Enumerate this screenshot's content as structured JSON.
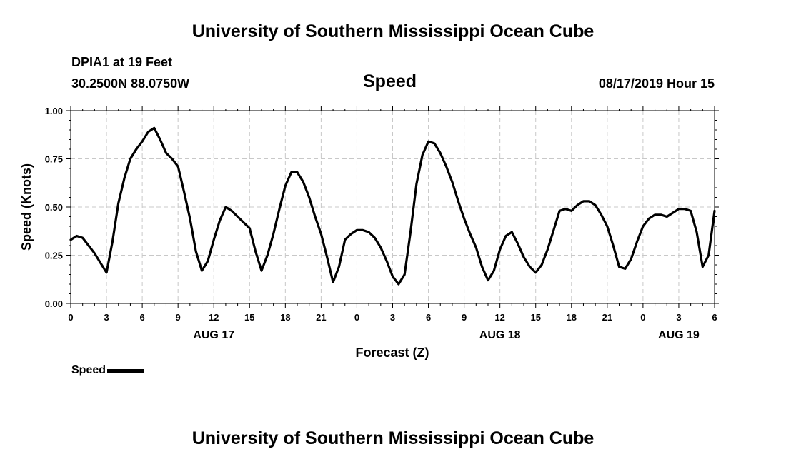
{
  "header": {
    "title_top": "University of Southern Mississippi Ocean Cube",
    "station": "DPIA1 at 19 Feet",
    "coords": "30.2500N 88.0750W",
    "variable": "Speed",
    "datetime": "08/17/2019 Hour 15"
  },
  "footer": {
    "title_bottom": "University of Southern Mississippi Ocean Cube"
  },
  "legend": {
    "label": "Speed",
    "color": "#000000"
  },
  "chart_data": {
    "type": "line",
    "title": "Speed",
    "xlabel": "Forecast (Z)",
    "ylabel": "Speed (Knots)",
    "xlim": [
      0,
      54
    ],
    "ylim": [
      0.0,
      1.0
    ],
    "grid": true,
    "yticks": [
      "0.00",
      "0.25",
      "0.50",
      "0.75",
      "1.00"
    ],
    "ytick_values": [
      0.0,
      0.25,
      0.5,
      0.75,
      1.0
    ],
    "xticks": [
      "0",
      "3",
      "6",
      "9",
      "12",
      "15",
      "18",
      "21",
      "0",
      "3",
      "6",
      "9",
      "12",
      "15",
      "18",
      "21",
      "0",
      "3",
      "6"
    ],
    "xtick_hours": [
      0,
      3,
      6,
      9,
      12,
      15,
      18,
      21,
      24,
      27,
      30,
      33,
      36,
      39,
      42,
      45,
      48,
      51,
      54
    ],
    "day_labels": [
      "AUG 17",
      "AUG 18",
      "AUG 19"
    ],
    "day_label_hours": [
      12,
      36,
      51
    ],
    "series": [
      {
        "name": "Speed",
        "color": "#000000",
        "x": [
          0,
          0.5,
          1,
          1.5,
          2,
          2.5,
          3,
          3.5,
          4,
          4.5,
          5,
          5.5,
          6,
          6.5,
          7,
          7.5,
          8,
          8.5,
          9,
          9.5,
          10,
          10.5,
          11,
          11.5,
          12,
          12.5,
          13,
          13.5,
          14,
          14.5,
          15,
          15.5,
          16,
          16.5,
          17,
          17.5,
          18,
          18.5,
          19,
          19.5,
          20,
          20.5,
          21,
          21.5,
          22,
          22.5,
          23,
          23.5,
          24,
          24.5,
          25,
          25.5,
          26,
          26.5,
          27,
          27.5,
          28,
          28.5,
          29,
          29.5,
          30,
          30.5,
          31,
          31.5,
          32,
          32.5,
          33,
          33.5,
          34,
          34.5,
          35,
          35.5,
          36,
          36.5,
          37,
          37.5,
          38,
          38.5,
          39,
          39.5,
          40,
          40.5,
          41,
          41.5,
          42,
          42.5,
          43,
          43.5,
          44,
          44.5,
          45,
          45.5,
          46,
          46.5,
          47,
          47.5,
          48,
          48.5,
          49,
          49.5,
          50,
          50.5,
          51,
          51.5,
          52,
          52.5,
          53,
          53.5,
          54
        ],
        "values": [
          0.33,
          0.35,
          0.34,
          0.3,
          0.26,
          0.21,
          0.16,
          0.32,
          0.52,
          0.65,
          0.75,
          0.8,
          0.84,
          0.89,
          0.91,
          0.85,
          0.78,
          0.75,
          0.71,
          0.58,
          0.44,
          0.27,
          0.17,
          0.22,
          0.33,
          0.43,
          0.5,
          0.48,
          0.45,
          0.42,
          0.39,
          0.27,
          0.17,
          0.25,
          0.36,
          0.49,
          0.61,
          0.68,
          0.68,
          0.63,
          0.55,
          0.45,
          0.36,
          0.24,
          0.11,
          0.19,
          0.33,
          0.36,
          0.38,
          0.38,
          0.37,
          0.34,
          0.29,
          0.22,
          0.14,
          0.1,
          0.15,
          0.37,
          0.62,
          0.77,
          0.84,
          0.83,
          0.78,
          0.71,
          0.63,
          0.53,
          0.44,
          0.36,
          0.29,
          0.19,
          0.12,
          0.17,
          0.28,
          0.35,
          0.37,
          0.31,
          0.24,
          0.19,
          0.16,
          0.2,
          0.28,
          0.38,
          0.48,
          0.49,
          0.48,
          0.51,
          0.53,
          0.53,
          0.51,
          0.46,
          0.4,
          0.3,
          0.19,
          0.18,
          0.23,
          0.32,
          0.4,
          0.44,
          0.46,
          0.46,
          0.45,
          0.47,
          0.49,
          0.49,
          0.48,
          0.37,
          0.19,
          0.25,
          0.48
        ]
      }
    ]
  }
}
